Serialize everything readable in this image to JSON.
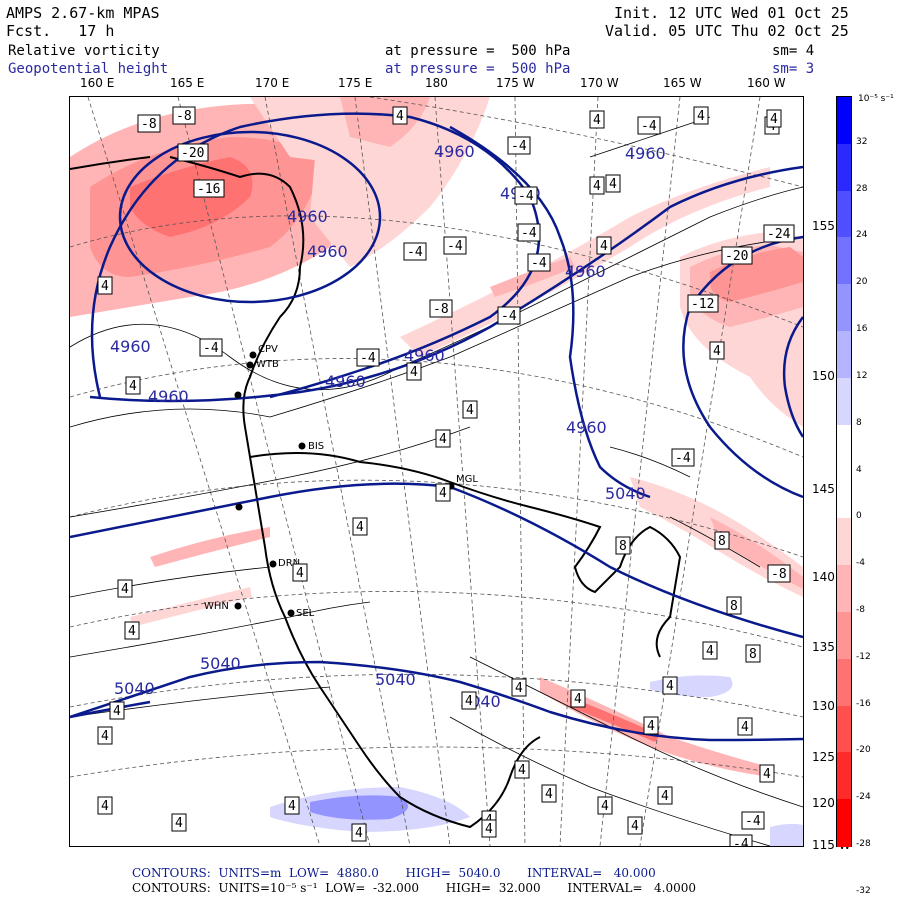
{
  "header": {
    "model": "AMPS 2.67-km MPAS",
    "forecast": "Fcst.   17 h",
    "init": "Init. 12 UTC Wed 01 Oct 25",
    "valid": "Valid. 05 UTC Thu 02 Oct 25",
    "field1": {
      "name": "Relative vorticity",
      "level": "at pressure =  500 hPa",
      "sm": "sm= 4"
    },
    "field2": {
      "name": "Geopotential height",
      "level": "at pressure =  500 hPa",
      "sm": "sm= 3"
    }
  },
  "longitudes": [
    "160 E",
    "165 E",
    "170 E",
    "175 E",
    "180",
    "175 W",
    "170 W",
    "165 W",
    "160 W"
  ],
  "latitudes": [
    "155 W",
    "150 W",
    "145 W",
    "140 W",
    "135 W",
    "130 W",
    "125 W",
    "120 W",
    "115 W"
  ],
  "colorbar": {
    "unit": "10⁻⁵ s⁻¹",
    "labels": [
      "32",
      "28",
      "24",
      "20",
      "16",
      "12",
      "8",
      "4",
      "0",
      "-4",
      "-8",
      "-12",
      "-16",
      "-20",
      "-24",
      "-28",
      "-32"
    ],
    "colors": [
      "#0000ff",
      "#2a2aff",
      "#4f4fff",
      "#7272ff",
      "#9494ff",
      "#b5b5ff",
      "#d6d6ff",
      "#ffffff",
      "#ffffff",
      "#ffd6d6",
      "#ffb5b5",
      "#ff9494",
      "#ff7272",
      "#ff4f4f",
      "#ff2a2a",
      "#ff0000"
    ]
  },
  "height_labels": [
    "4960",
    "4960",
    "4960",
    "4960",
    "4960",
    "4960",
    "4960",
    "4960",
    "4960",
    "4960",
    "4960",
    "5040",
    "5040",
    "5040",
    "5040",
    "5040"
  ],
  "vorticity_labels": [
    "-8",
    "-8",
    "-20",
    "-16",
    "-4",
    "-4",
    "-4",
    "-4",
    "-4",
    "-4",
    "-8",
    "-4",
    "-4",
    "-4",
    "-24",
    "-20",
    "-12",
    "-4",
    "-4",
    "-8",
    "4",
    "4",
    "4",
    "4",
    "4",
    "4",
    "4",
    "4",
    "4",
    "4",
    "4",
    "4",
    "4",
    "4",
    "4",
    "4",
    "4",
    "4",
    "4",
    "4",
    "4",
    "4",
    "4",
    "4",
    "4",
    "4",
    "4",
    "4",
    "4",
    "8",
    "8",
    "8",
    "4",
    "4",
    "4",
    "4",
    "4",
    "-4",
    "-4",
    "4",
    "4",
    "4",
    "4",
    "4",
    "4",
    "8"
  ],
  "stations": [
    "CPV",
    "WTB",
    "BIS",
    "MGL",
    "DRN",
    "SEL",
    "WHN"
  ],
  "footer": {
    "line1": "CONTOURS:  UNITS=m  LOW=  4880.0       HIGH=  5040.0       INTERVAL=   40.000",
    "line2": "CONTOURS:  UNITS=10⁻⁵ s⁻¹  LOW=  -32.000       HIGH=  32.000       INTERVAL=   4.0000"
  }
}
